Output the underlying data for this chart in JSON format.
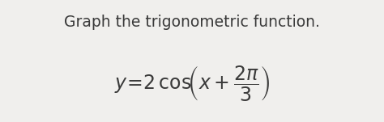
{
  "background_color": "#f0efed",
  "title_text": "Graph the trigonometric function.",
  "title_fontsize": 13.5,
  "title_color": "#3a3a3a",
  "formula_color": "#3a3a3a",
  "formula_fontsize": 17,
  "fig_width": 4.74,
  "fig_height": 1.51,
  "dpi": 100
}
